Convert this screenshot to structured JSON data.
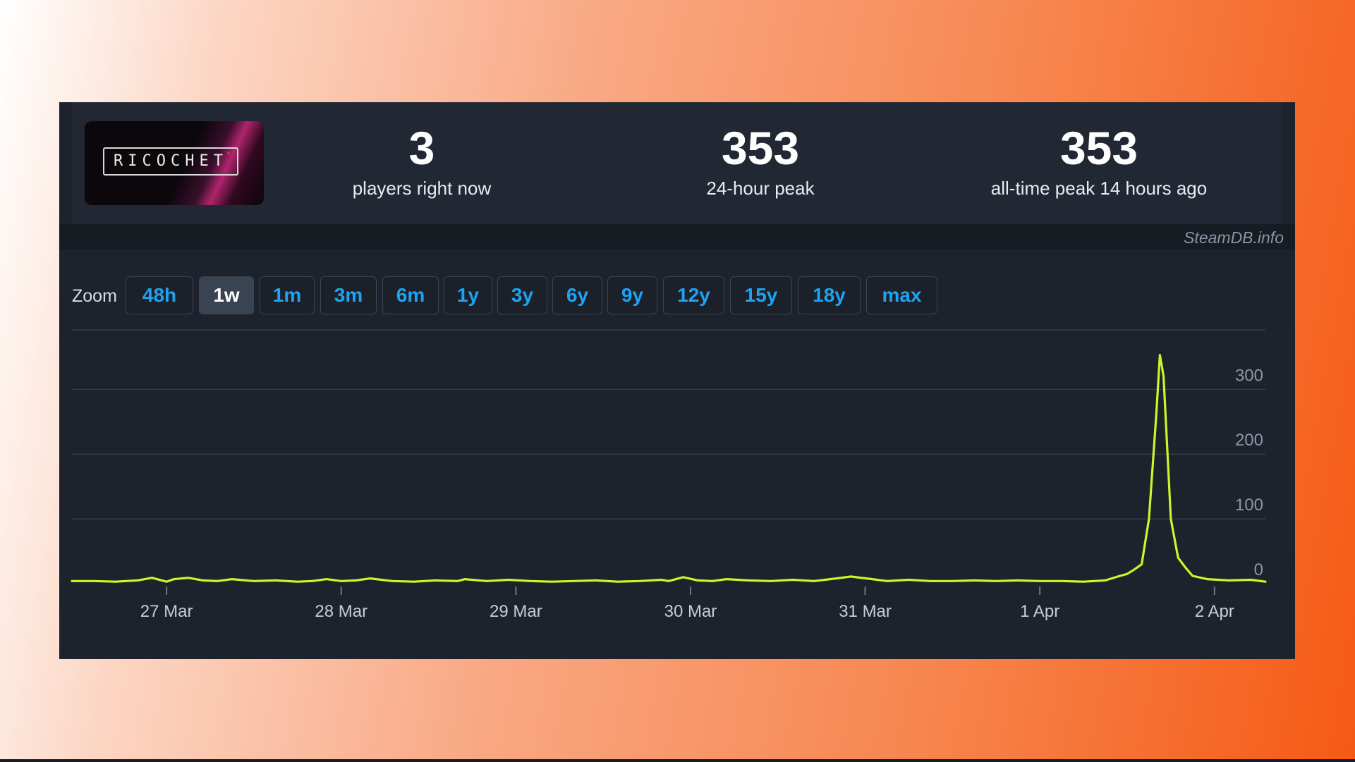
{
  "game": {
    "logo_text": "RICOCHET",
    "logo_icon": "ricochet-logo"
  },
  "stats": [
    {
      "value": "3",
      "label": "players right now"
    },
    {
      "value": "353",
      "label": "24-hour peak"
    },
    {
      "value": "353",
      "label": "all-time peak 14 hours ago"
    }
  ],
  "source": "SteamDB.info",
  "zoom": {
    "label": "Zoom",
    "options": [
      "48h",
      "1w",
      "1m",
      "3m",
      "6m",
      "1y",
      "3y",
      "6y",
      "9y",
      "12y",
      "15y",
      "18y",
      "max"
    ],
    "selected": "1w"
  },
  "colors": {
    "line": "#c8f72a",
    "accent": "#1ea3f3",
    "card_background": "#1d222c"
  },
  "chart_data": {
    "type": "line",
    "x_tick_labels": [
      "27 Mar",
      "28 Mar",
      "29 Mar",
      "30 Mar",
      "31 Mar",
      "1 Apr",
      "2 Apr"
    ],
    "y_tick_labels": [
      "0",
      "100",
      "200",
      "300"
    ],
    "ylim": [
      0,
      400
    ],
    "xlim": [
      "2026-03-26 11:00",
      "2026-04-02 07:00"
    ],
    "grid": true,
    "series": [
      {
        "points": [
          [
            "2026-03-26 11:00",
            4
          ],
          [
            "2026-03-26 14:00",
            4
          ],
          [
            "2026-03-26 17:00",
            3
          ],
          [
            "2026-03-26 20:00",
            5
          ],
          [
            "2026-03-26 22:00",
            9
          ],
          [
            "2026-03-27 00:00",
            3
          ],
          [
            "2026-03-27 01:00",
            7
          ],
          [
            "2026-03-27 03:00",
            9
          ],
          [
            "2026-03-27 05:00",
            5
          ],
          [
            "2026-03-27 07:00",
            4
          ],
          [
            "2026-03-27 09:00",
            7
          ],
          [
            "2026-03-27 12:00",
            4
          ],
          [
            "2026-03-27 15:00",
            5
          ],
          [
            "2026-03-27 18:00",
            3
          ],
          [
            "2026-03-27 20:00",
            4
          ],
          [
            "2026-03-27 22:00",
            7
          ],
          [
            "2026-03-28 00:00",
            4
          ],
          [
            "2026-03-28 02:00",
            5
          ],
          [
            "2026-03-28 04:00",
            8
          ],
          [
            "2026-03-28 07:00",
            4
          ],
          [
            "2026-03-28 10:00",
            3
          ],
          [
            "2026-03-28 13:00",
            5
          ],
          [
            "2026-03-28 16:00",
            4
          ],
          [
            "2026-03-28 17:00",
            7
          ],
          [
            "2026-03-28 20:00",
            4
          ],
          [
            "2026-03-28 23:00",
            6
          ],
          [
            "2026-03-29 02:00",
            4
          ],
          [
            "2026-03-29 05:00",
            3
          ],
          [
            "2026-03-29 08:00",
            4
          ],
          [
            "2026-03-29 11:00",
            5
          ],
          [
            "2026-03-29 14:00",
            3
          ],
          [
            "2026-03-29 17:00",
            4
          ],
          [
            "2026-03-29 20:00",
            6
          ],
          [
            "2026-03-29 21:00",
            4
          ],
          [
            "2026-03-29 23:00",
            10
          ],
          [
            "2026-03-30 01:00",
            5
          ],
          [
            "2026-03-30 03:00",
            4
          ],
          [
            "2026-03-30 05:00",
            7
          ],
          [
            "2026-03-30 08:00",
            5
          ],
          [
            "2026-03-30 11:00",
            4
          ],
          [
            "2026-03-30 14:00",
            6
          ],
          [
            "2026-03-30 17:00",
            4
          ],
          [
            "2026-03-30 20:00",
            8
          ],
          [
            "2026-03-30 22:00",
            11
          ],
          [
            "2026-03-31 01:00",
            7
          ],
          [
            "2026-03-31 03:00",
            4
          ],
          [
            "2026-03-31 06:00",
            6
          ],
          [
            "2026-03-31 09:00",
            4
          ],
          [
            "2026-03-31 12:00",
            4
          ],
          [
            "2026-03-31 15:00",
            5
          ],
          [
            "2026-03-31 18:00",
            4
          ],
          [
            "2026-03-31 21:00",
            5
          ],
          [
            "2026-04-01 00:00",
            4
          ],
          [
            "2026-04-01 03:00",
            4
          ],
          [
            "2026-04-01 06:00",
            3
          ],
          [
            "2026-04-01 09:00",
            5
          ],
          [
            "2026-04-01 11:00",
            12
          ],
          [
            "2026-04-01 12:00",
            15
          ],
          [
            "2026-04-01 13:00",
            22
          ],
          [
            "2026-04-01 14:00",
            30
          ],
          [
            "2026-04-01 15:00",
            100
          ],
          [
            "2026-04-01 16:00",
            260
          ],
          [
            "2026-04-01 16:30",
            353
          ],
          [
            "2026-04-01 17:00",
            320
          ],
          [
            "2026-04-01 18:00",
            100
          ],
          [
            "2026-04-01 19:00",
            40
          ],
          [
            "2026-04-01 20:00",
            25
          ],
          [
            "2026-04-01 21:00",
            12
          ],
          [
            "2026-04-01 23:00",
            7
          ],
          [
            "2026-04-02 02:00",
            5
          ],
          [
            "2026-04-02 05:00",
            6
          ],
          [
            "2026-04-02 07:00",
            3
          ]
        ]
      }
    ]
  }
}
